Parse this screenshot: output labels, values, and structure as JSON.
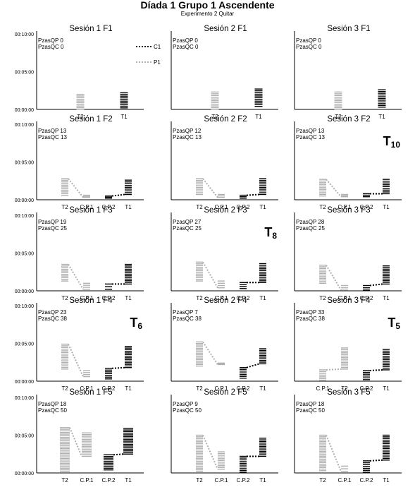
{
  "title": "Díada 1 Grupo 1 Ascendente",
  "subtitle": "Experimento 2 Quitar",
  "y_ticks": [
    "00:10:00",
    "00:05:00",
    "00:00:00"
  ],
  "legend": {
    "c1": "C1",
    "p1": "P1"
  },
  "colors": {
    "c1": "#000000",
    "p1": "#b0b0b0"
  },
  "chart_data": [
    {
      "type": "raster",
      "title": "Sesión 1 F1",
      "ylim": [
        0,
        10
      ],
      "annotation": [
        "PzasQP 0",
        "PzasQC 0"
      ],
      "columns": [
        "T2",
        "T1"
      ],
      "series": [
        {
          "name": "P1",
          "column": "T2",
          "range": [
            0,
            2
          ]
        },
        {
          "name": "C1",
          "column": "T1",
          "range": [
            0.2,
            2.2
          ]
        }
      ]
    },
    {
      "type": "raster",
      "title": "Sesión 2 F1",
      "ylim": [
        0,
        10
      ],
      "annotation": [
        "PzasQP 0",
        "PzasQC 0"
      ],
      "columns": [
        "T2",
        "T1"
      ],
      "series": [
        {
          "name": "P1",
          "column": "T2",
          "range": [
            0,
            2.3
          ]
        },
        {
          "name": "C1",
          "column": "T1",
          "range": [
            0.4,
            2.7
          ]
        }
      ]
    },
    {
      "type": "raster",
      "title": "Sesión 3 F1",
      "ylim": [
        0,
        10
      ],
      "annotation": [
        "PzasQP 0",
        "PzasQC 0"
      ],
      "columns": [
        "T2",
        "T1"
      ],
      "series": [
        {
          "name": "P1",
          "column": "T2",
          "range": [
            0,
            2.3
          ]
        },
        {
          "name": "C1",
          "column": "T1",
          "range": [
            0.3,
            2.6
          ]
        }
      ]
    },
    {
      "type": "raster",
      "title": "Sesión 1 F2",
      "ylim": [
        0,
        10
      ],
      "annotation": [
        "PzasQP 13",
        "PzasQC 13"
      ],
      "columns": [
        "T2",
        "C.P.1",
        "C.P.2",
        "T1"
      ],
      "series": [
        {
          "name": "P1",
          "column": "T2",
          "range": [
            0.6,
            2.8
          ]
        },
        {
          "name": "P1",
          "column": "C.P.1",
          "range": [
            0.3,
            0.6
          ]
        },
        {
          "name": "C1",
          "column": "C.P.2",
          "range": [
            0.2,
            0.5
          ]
        },
        {
          "name": "C1",
          "column": "T1",
          "range": [
            0.7,
            2.6
          ]
        }
      ]
    },
    {
      "type": "raster",
      "title": "Sesión 2 F2",
      "ylim": [
        0,
        10
      ],
      "annotation": [
        "PzasQP 12",
        "PzasQC 13"
      ],
      "columns": [
        "T2",
        "C.P.1",
        "C.P.2",
        "T1"
      ],
      "series": [
        {
          "name": "P1",
          "column": "T2",
          "range": [
            0.7,
            2.8
          ]
        },
        {
          "name": "P1",
          "column": "C.P.1",
          "range": [
            0.3,
            0.7
          ]
        },
        {
          "name": "C1",
          "column": "C.P.2",
          "range": [
            0.2,
            0.6
          ]
        },
        {
          "name": "C1",
          "column": "T1",
          "range": [
            0.7,
            2.8
          ]
        }
      ]
    },
    {
      "type": "raster",
      "title": "Sesión 3 F2",
      "ylim": [
        0,
        10
      ],
      "annotation": [
        "PzasQP 13",
        "PzasQC 13"
      ],
      "marker": "T10",
      "columns": [
        "T2",
        "C.P.1",
        "C.P.2",
        "T1"
      ],
      "series": [
        {
          "name": "P1",
          "column": "T2",
          "range": [
            0.5,
            2.7
          ]
        },
        {
          "name": "P1",
          "column": "C.P.1",
          "range": [
            0.4,
            0.7
          ]
        },
        {
          "name": "C1",
          "column": "C.P.2",
          "range": [
            0.4,
            0.8
          ]
        },
        {
          "name": "C1",
          "column": "T1",
          "range": [
            0.8,
            2.7
          ]
        }
      ]
    },
    {
      "type": "raster",
      "title": "Sesión 1 F3",
      "ylim": [
        0,
        10
      ],
      "annotation": [
        "PzasQP 19",
        "PzasQC 25"
      ],
      "columns": [
        "T2",
        "C.P.1",
        "C.P.2",
        "T1"
      ],
      "series": [
        {
          "name": "P1",
          "column": "T2",
          "range": [
            1.3,
            3.5
          ]
        },
        {
          "name": "P1",
          "column": "C.P.1",
          "range": [
            0.2,
            1.0
          ]
        },
        {
          "name": "C1",
          "column": "C.P.2",
          "range": [
            0.2,
            0.9
          ]
        },
        {
          "name": "C1",
          "column": "T1",
          "range": [
            0.9,
            3.5
          ]
        }
      ]
    },
    {
      "type": "raster",
      "title": "Sesión 2 F3",
      "ylim": [
        0,
        10
      ],
      "annotation": [
        "PzasQP 27",
        "PzasQC 25"
      ],
      "marker": "T8",
      "columns": [
        "T2",
        "C.P.1",
        "C.P.2",
        "T1"
      ],
      "series": [
        {
          "name": "P1",
          "column": "T2",
          "range": [
            1.3,
            3.8
          ]
        },
        {
          "name": "P1",
          "column": "C.P.1",
          "range": [
            0.4,
            1.3
          ]
        },
        {
          "name": "C1",
          "column": "C.P.2",
          "range": [
            0.3,
            1.1
          ]
        },
        {
          "name": "C1",
          "column": "T1",
          "range": [
            1.1,
            3.6
          ]
        }
      ]
    },
    {
      "type": "raster",
      "title": "Sesión 3 F3",
      "ylim": [
        0,
        10
      ],
      "annotation": [
        "PzasQP 28",
        "PzasQC 25"
      ],
      "columns": [
        "T2",
        "C.P.1",
        "C.P.2",
        "T1"
      ],
      "series": [
        {
          "name": "P1",
          "column": "T2",
          "range": [
            1.0,
            3.4
          ]
        },
        {
          "name": "P1",
          "column": "C.P.1",
          "range": [
            0.1,
            0.7
          ]
        },
        {
          "name": "C1",
          "column": "C.P.2",
          "range": [
            0.1,
            0.7
          ]
        },
        {
          "name": "C1",
          "column": "T1",
          "range": [
            0.9,
            3.3
          ]
        }
      ]
    },
    {
      "type": "raster",
      "title": "Sesión 1 F4",
      "ylim": [
        0,
        10
      ],
      "annotation": [
        "PzasQP 23",
        "PzasQC 38"
      ],
      "marker": "T6",
      "columns": [
        "T2",
        "C.P.1",
        "C.P.2",
        "T1"
      ],
      "series": [
        {
          "name": "P1",
          "column": "T2",
          "range": [
            1.6,
            4.9
          ]
        },
        {
          "name": "P1",
          "column": "C.P.1",
          "range": [
            0.6,
            1.4
          ]
        },
        {
          "name": "C1",
          "column": "C.P.2",
          "range": [
            0.3,
            1.7
          ]
        },
        {
          "name": "C1",
          "column": "T1",
          "range": [
            1.8,
            4.6
          ]
        }
      ]
    },
    {
      "type": "raster",
      "title": "Sesión 2 F4",
      "ylim": [
        0,
        10
      ],
      "annotation": [
        "PzasQP 7",
        "PzasQC 38"
      ],
      "columns": [
        "T2",
        "C.P.1",
        "C.P.2",
        "T1"
      ],
      "series": [
        {
          "name": "P1",
          "column": "T2",
          "range": [
            2.0,
            5.2
          ]
        },
        {
          "name": "P1",
          "column": "C.P.1",
          "range": [
            2.2,
            2.4
          ]
        },
        {
          "name": "C1",
          "column": "C.P.2",
          "range": [
            0.4,
            1.8
          ]
        },
        {
          "name": "C1",
          "column": "T1",
          "range": [
            2.3,
            4.3
          ]
        }
      ]
    },
    {
      "type": "raster",
      "title": "Sesión 3 F4",
      "ylim": [
        0,
        10
      ],
      "annotation": [
        "PzasQP 33",
        "PzasQC 38"
      ],
      "marker": "T5",
      "columns": [
        "C.P.1",
        "T2",
        "C.P.2",
        "T1"
      ],
      "series": [
        {
          "name": "P1",
          "column": "C.P.1",
          "range": [
            0.1,
            1.5
          ]
        },
        {
          "name": "P1",
          "column": "T2",
          "range": [
            1.6,
            4.4
          ]
        },
        {
          "name": "C1",
          "column": "C.P.2",
          "range": [
            0.2,
            1.4
          ]
        },
        {
          "name": "C1",
          "column": "T1",
          "range": [
            1.5,
            4.2
          ]
        }
      ]
    },
    {
      "type": "raster",
      "title": "Sesión 1 F5",
      "ylim": [
        0,
        10
      ],
      "annotation": [
        "PzasQP 18",
        "PzasQC 50"
      ],
      "columns": [
        "T2",
        "C.P.1",
        "C.P.2",
        "T1"
      ],
      "series": [
        {
          "name": "P1",
          "column": "T2",
          "range": [
            0.2,
            6.0
          ]
        },
        {
          "name": "P1",
          "column": "C.P.1",
          "range": [
            2.2,
            5.3
          ]
        },
        {
          "name": "C1",
          "column": "C.P.2",
          "range": [
            0.4,
            2.4
          ]
        },
        {
          "name": "C1",
          "column": "T1",
          "range": [
            2.5,
            5.9
          ]
        }
      ]
    },
    {
      "type": "raster",
      "title": "Sesión 2 F5",
      "ylim": [
        0,
        10
      ],
      "annotation": [
        "PzasQP 9",
        "PzasQC 50"
      ],
      "columns": [
        "T2",
        "C.P.1",
        "C.P.2",
        "T1"
      ],
      "series": [
        {
          "name": "P1",
          "column": "T2",
          "range": [
            0.2,
            5.0
          ]
        },
        {
          "name": "P1",
          "column": "C.P.1",
          "range": [
            0.5,
            2.8
          ]
        },
        {
          "name": "C1",
          "column": "C.P.2",
          "range": [
            0.1,
            2.2
          ]
        },
        {
          "name": "C1",
          "column": "T1",
          "range": [
            2.2,
            4.6
          ]
        }
      ]
    },
    {
      "type": "raster",
      "title": "Sesión 3 F5",
      "ylim": [
        0,
        10
      ],
      "annotation": [
        "PzasQP 18",
        "PzasQC 50"
      ],
      "columns": [
        "T2",
        "C.P.1",
        "C.P.2",
        "T1"
      ],
      "series": [
        {
          "name": "P1",
          "column": "T2",
          "range": [
            0.3,
            5.0
          ]
        },
        {
          "name": "P1",
          "column": "C.P.1",
          "range": [
            0.2,
            0.9
          ]
        },
        {
          "name": "C1",
          "column": "C.P.2",
          "range": [
            0.1,
            1.6
          ]
        },
        {
          "name": "C1",
          "column": "T1",
          "range": [
            1.7,
            5.0
          ]
        }
      ]
    }
  ]
}
